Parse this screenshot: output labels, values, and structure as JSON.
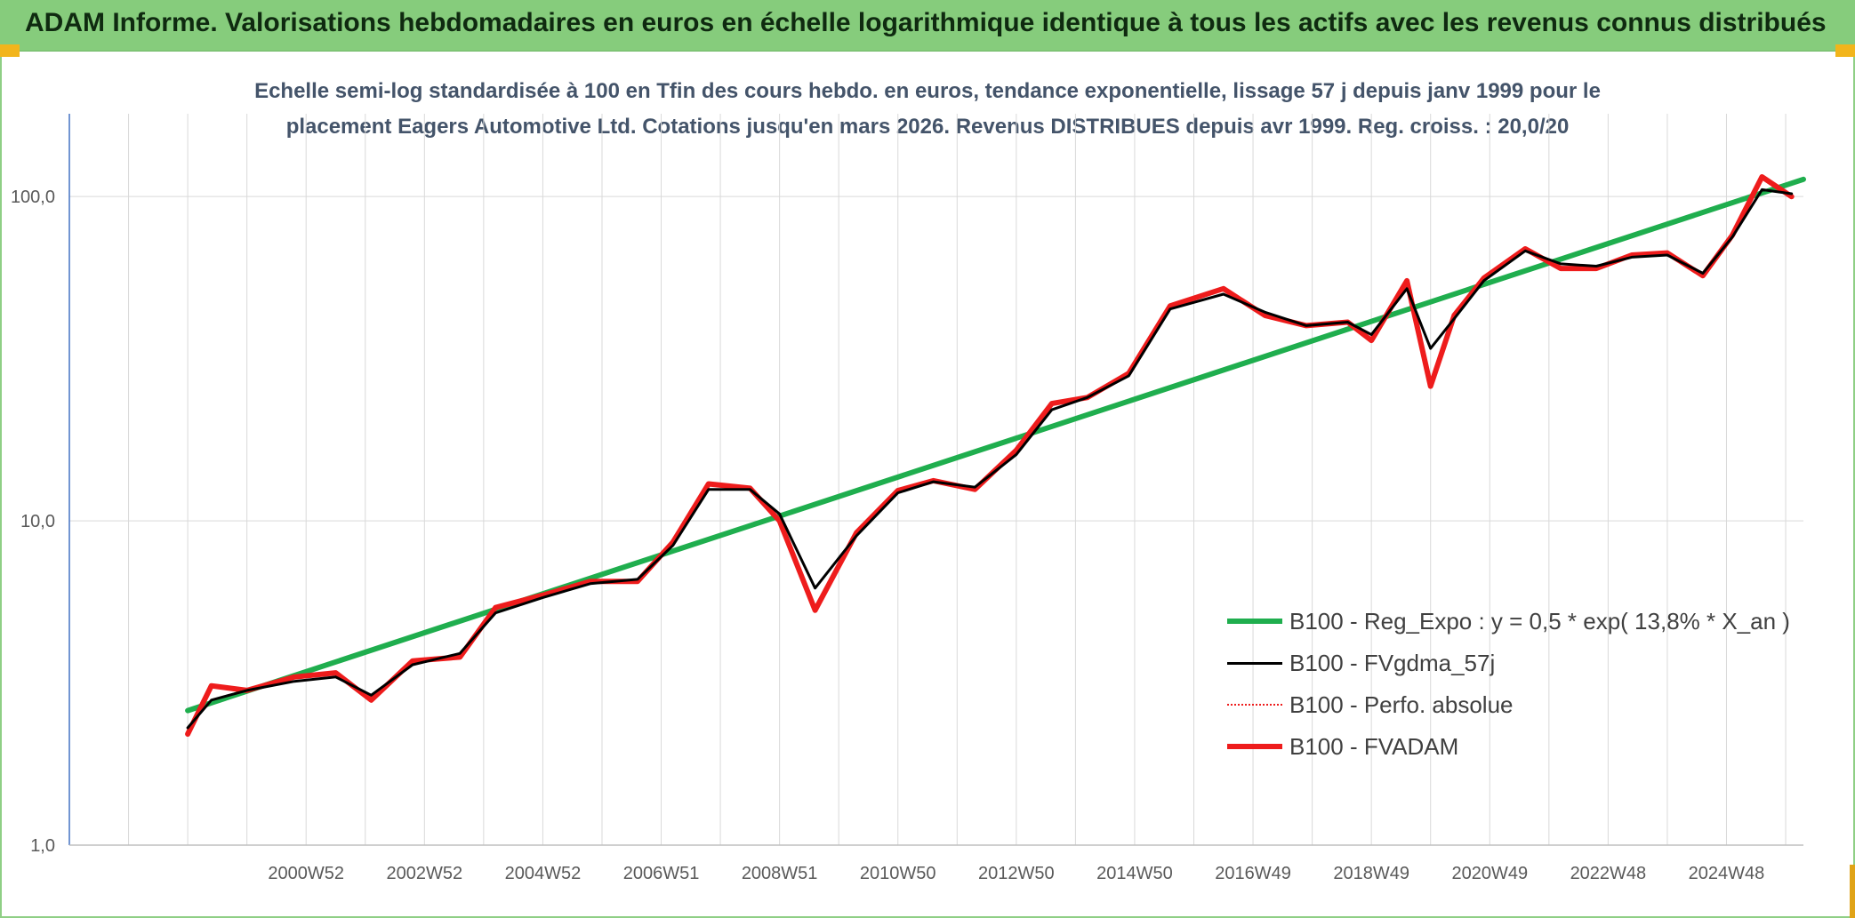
{
  "banner": {
    "title": "ADAM Informe. Valorisations hebdomadaires en euros en échelle logarithmique identique à tous les actifs avec les revenus connus distribués"
  },
  "chart_data": {
    "type": "line",
    "title_lines": [
      "Echelle semi-log standardisée à 100 en Tfin des cours hebdo. en euros, tendance exponentielle, lissage 57 j depuis janv 1999 pour le",
      "placement Eagers Automotive Ltd. Cotations jusqu'en mars 2026. Revenus DISTRIBUES depuis avr 1999. Reg. croiss. : 20,0/20"
    ],
    "xlabel": "",
    "ylabel": "",
    "y_scale": "log",
    "ylim": [
      1,
      180
    ],
    "xlim": [
      1997.0,
      2026.3
    ],
    "y_ticks": [
      {
        "value": 1,
        "label": "1,0"
      },
      {
        "value": 10,
        "label": "10,0"
      },
      {
        "value": 100,
        "label": "100,0"
      }
    ],
    "x_tick_labels": [
      "2000W52",
      "2002W52",
      "2004W52",
      "2006W51",
      "2008W51",
      "2010W50",
      "2012W50",
      "2014W50",
      "2016W49",
      "2018W49",
      "2020W49",
      "2022W48",
      "2024W48"
    ],
    "x_tick_positions": [
      2001.0,
      2003.0,
      2005.0,
      2007.0,
      2009.0,
      2011.0,
      2013.0,
      2015.0,
      2017.0,
      2019.0,
      2021.0,
      2023.0,
      2025.0
    ],
    "grid": "vertical",
    "legend_position": "bottom-right",
    "series": [
      {
        "name": "B100 - Reg_Expo : y = 0,5 * exp( 13,8% *  X_an )",
        "color": "#1fae4e",
        "style": "solid-thick",
        "x": [
          1999.0,
          2026.3
        ],
        "y": [
          2.6,
          113
        ]
      },
      {
        "name": "B100 - FVgdma_57j",
        "color": "#000000",
        "style": "solid",
        "x": [
          1999.0,
          1999.4,
          2000.0,
          2000.8,
          2001.5,
          2002.1,
          2002.8,
          2003.6,
          2004.2,
          2005.0,
          2005.8,
          2006.6,
          2007.2,
          2007.8,
          2008.5,
          2009.0,
          2009.6,
          2010.3,
          2011.0,
          2011.6,
          2012.3,
          2013.0,
          2013.6,
          2014.2,
          2014.9,
          2015.6,
          2016.5,
          2017.2,
          2017.9,
          2018.6,
          2019.0,
          2019.6,
          2020.0,
          2020.4,
          2020.9,
          2021.6,
          2022.2,
          2022.8,
          2023.4,
          2024.0,
          2024.6,
          2025.1,
          2025.6,
          2026.1
        ],
        "y": [
          2.3,
          2.8,
          3.0,
          3.2,
          3.3,
          2.9,
          3.6,
          3.9,
          5.2,
          5.8,
          6.4,
          6.6,
          8.4,
          12.5,
          12.5,
          10.5,
          6.2,
          9.0,
          12.2,
          13.2,
          12.7,
          16.0,
          22.0,
          24.0,
          28.0,
          45.0,
          50.0,
          44.0,
          40.0,
          41.0,
          37.5,
          52.0,
          34.0,
          42.0,
          55.0,
          68.0,
          62.0,
          61.0,
          65.0,
          66.0,
          58.0,
          75.0,
          105.0,
          102.0
        ]
      },
      {
        "name": "B100 - Perfo. absolue",
        "color": "#ff3b3b",
        "style": "dotted",
        "x": [
          1999.0,
          1999.4,
          2000.0,
          2000.8,
          2001.5,
          2002.1,
          2002.8,
          2003.6,
          2004.2,
          2005.0,
          2005.8,
          2006.6,
          2007.2,
          2007.8,
          2008.5,
          2009.0,
          2009.6,
          2010.3,
          2011.0,
          2011.6,
          2012.3,
          2013.0,
          2013.6,
          2014.2,
          2014.9,
          2015.6,
          2016.5,
          2017.2,
          2017.9,
          2018.6,
          2019.0,
          2019.6,
          2020.0,
          2020.4,
          2020.9,
          2021.6,
          2022.2,
          2022.8,
          2023.4,
          2024.0,
          2024.6,
          2025.1,
          2025.6,
          2026.1
        ],
        "y": [
          2.2,
          3.1,
          3.0,
          3.3,
          3.4,
          2.8,
          3.7,
          3.8,
          5.4,
          5.9,
          6.5,
          6.5,
          8.6,
          13.0,
          12.6,
          10.0,
          5.3,
          9.2,
          12.4,
          13.3,
          12.5,
          16.5,
          23.0,
          24.0,
          28.5,
          46.0,
          52.0,
          43.0,
          40.0,
          41.0,
          36.0,
          55.0,
          26.0,
          43.0,
          56.0,
          69.0,
          60.0,
          60.0,
          66.0,
          67.0,
          57.0,
          76.0,
          115.0,
          100.0
        ]
      },
      {
        "name": "B100 - FVADAM",
        "color": "#ee1c1c",
        "style": "solid-thick",
        "x": [
          1999.0,
          1999.4,
          2000.0,
          2000.8,
          2001.5,
          2002.1,
          2002.8,
          2003.6,
          2004.2,
          2005.0,
          2005.8,
          2006.6,
          2007.2,
          2007.8,
          2008.5,
          2009.0,
          2009.6,
          2010.3,
          2011.0,
          2011.6,
          2012.3,
          2013.0,
          2013.6,
          2014.2,
          2014.9,
          2015.6,
          2016.5,
          2017.2,
          2017.9,
          2018.6,
          2019.0,
          2019.6,
          2020.0,
          2020.4,
          2020.9,
          2021.6,
          2022.2,
          2022.8,
          2023.4,
          2024.0,
          2024.6,
          2025.1,
          2025.6,
          2026.1
        ],
        "y": [
          2.2,
          3.1,
          3.0,
          3.3,
          3.4,
          2.8,
          3.7,
          3.8,
          5.4,
          5.9,
          6.5,
          6.5,
          8.6,
          13.0,
          12.6,
          10.0,
          5.3,
          9.2,
          12.4,
          13.3,
          12.5,
          16.5,
          23.0,
          24.0,
          28.5,
          46.0,
          52.0,
          43.0,
          40.0,
          41.0,
          36.0,
          55.0,
          26.0,
          43.0,
          56.0,
          69.0,
          60.0,
          60.0,
          66.0,
          67.0,
          57.0,
          76.0,
          115.0,
          100.0
        ]
      }
    ]
  }
}
